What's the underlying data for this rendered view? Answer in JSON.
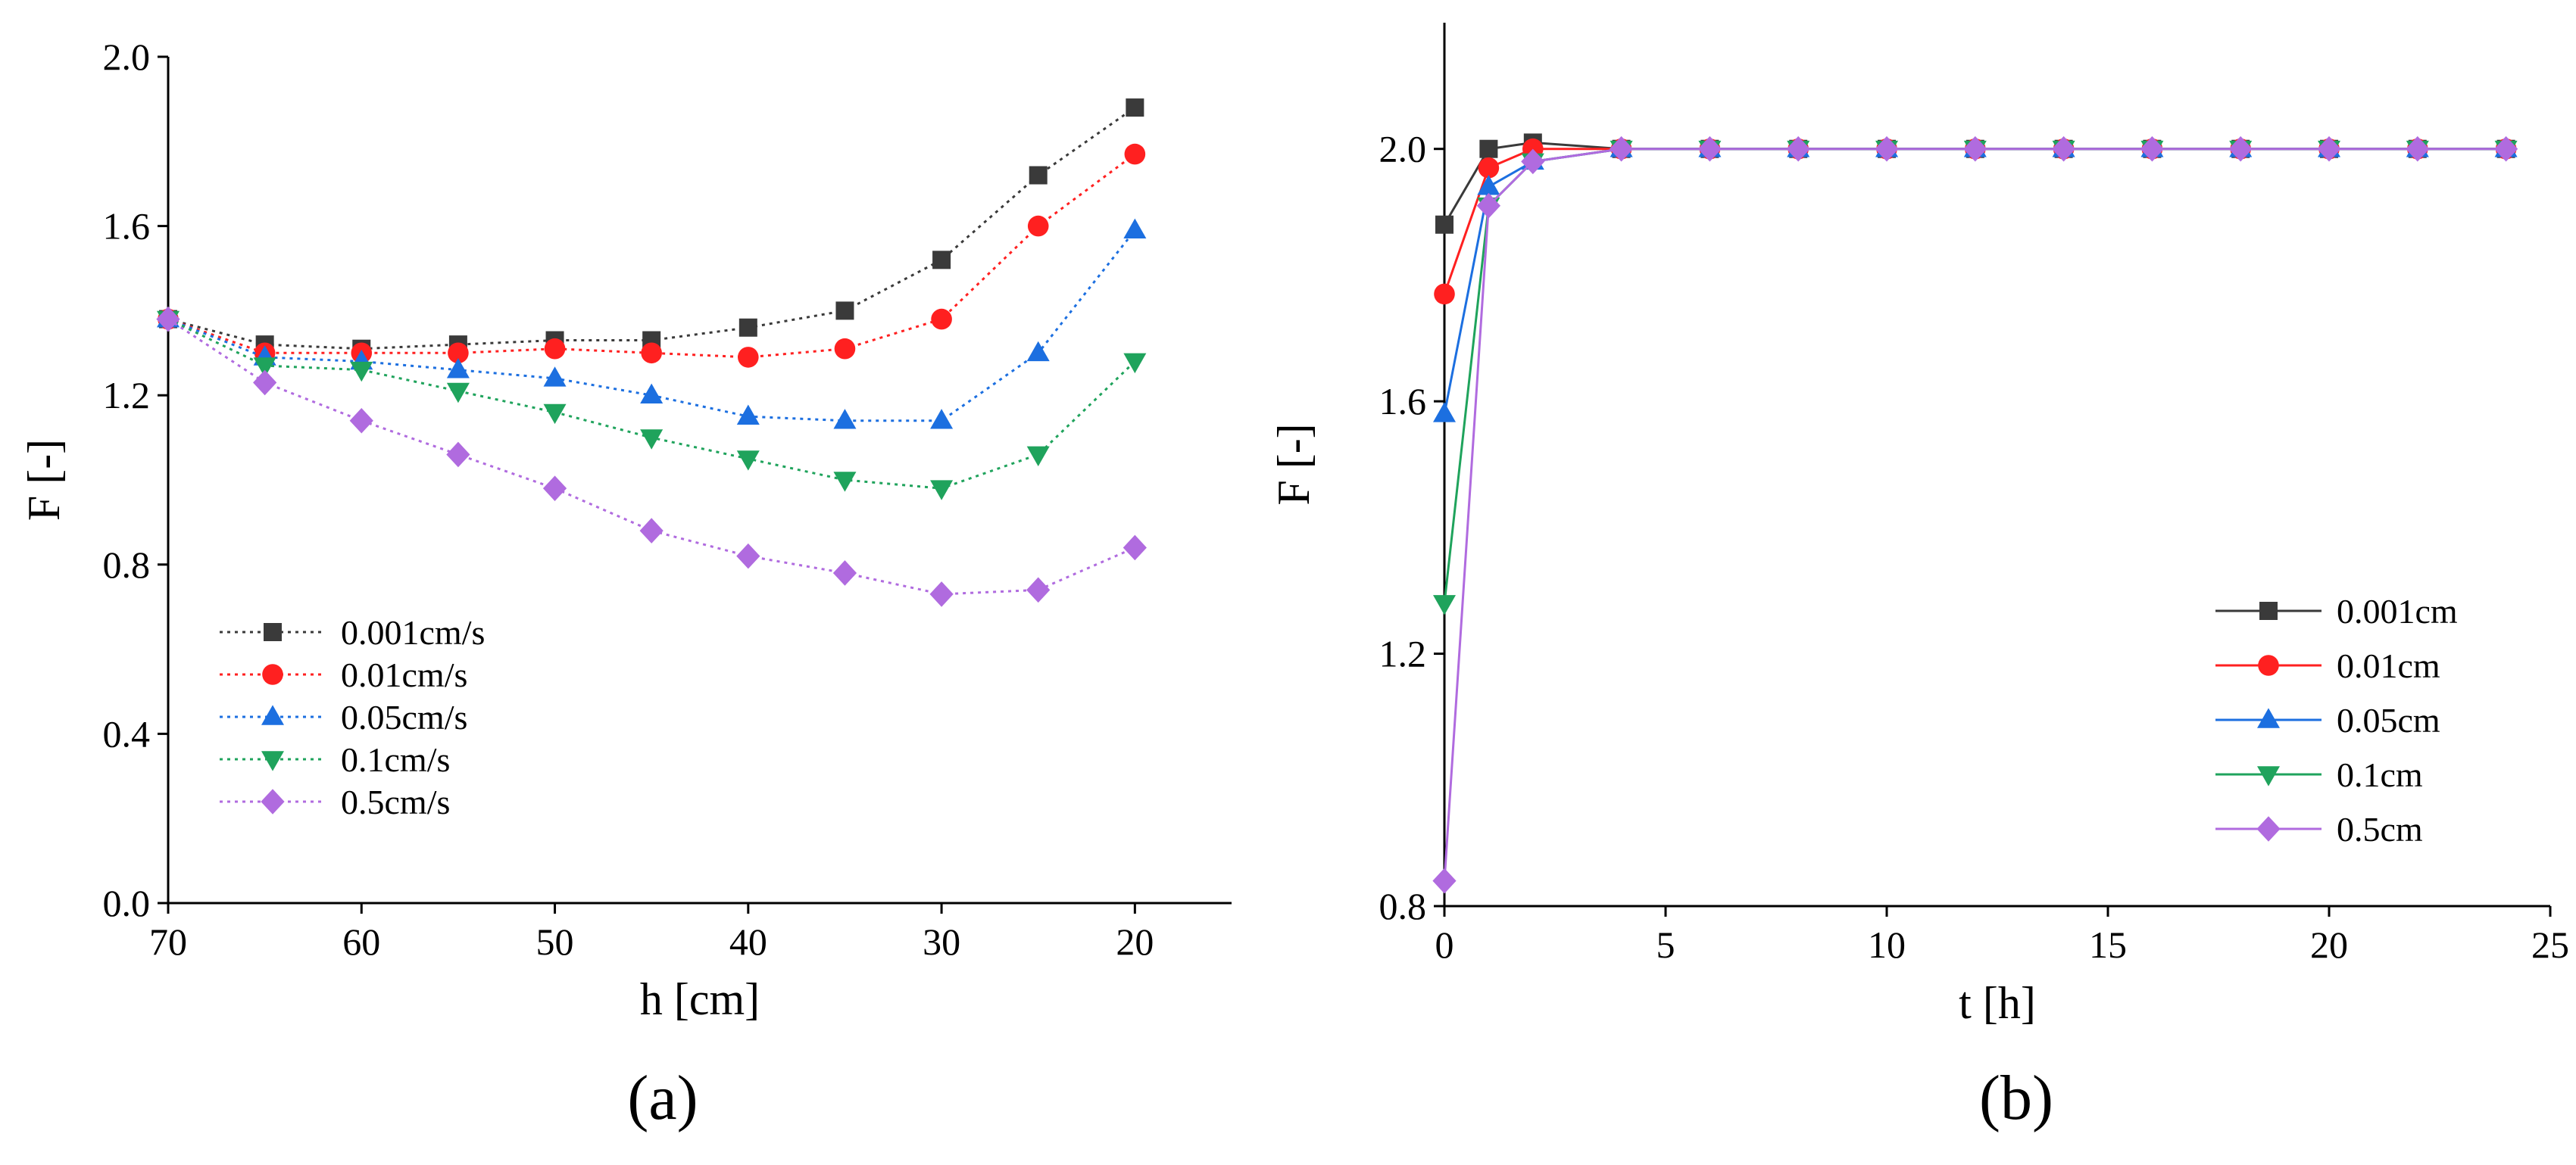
{
  "panels": [
    {
      "label": "(a)"
    },
    {
      "label": "(b)"
    }
  ],
  "chart_data": [
    {
      "type": "line",
      "panel": "(a)",
      "xlabel": "h [cm]",
      "ylabel": "F [-]",
      "xlim": [
        70,
        15
      ],
      "ylim": [
        0.0,
        2.0
      ],
      "xticks": [
        "70",
        "60",
        "50",
        "40",
        "30",
        "20"
      ],
      "yticks": [
        "0.0",
        "0.4",
        "0.8",
        "1.2",
        "1.6",
        "2.0"
      ],
      "x_reversed": true,
      "line_style": "dotted",
      "legend_position": "bottom-left",
      "x": [
        70,
        65,
        60,
        55,
        50,
        45,
        40,
        35,
        30,
        25,
        20
      ],
      "series": [
        {
          "name": "0.001cm/s",
          "color": "#3a3a3a",
          "marker": "square",
          "values": [
            1.38,
            1.32,
            1.31,
            1.32,
            1.33,
            1.33,
            1.36,
            1.4,
            1.52,
            1.72,
            1.88
          ]
        },
        {
          "name": "0.01cm/s",
          "color": "#ff2020",
          "marker": "circle",
          "values": [
            1.38,
            1.3,
            1.3,
            1.3,
            1.31,
            1.3,
            1.29,
            1.31,
            1.38,
            1.6,
            1.77
          ]
        },
        {
          "name": "0.05cm/s",
          "color": "#1c6fe0",
          "marker": "triangle-up",
          "values": [
            1.38,
            1.29,
            1.28,
            1.26,
            1.24,
            1.2,
            1.15,
            1.14,
            1.14,
            1.3,
            1.59
          ]
        },
        {
          "name": "0.1cm/s",
          "color": "#1fa35c",
          "marker": "triangle-down",
          "values": [
            1.38,
            1.27,
            1.26,
            1.21,
            1.16,
            1.1,
            1.05,
            1.0,
            0.98,
            1.06,
            1.28
          ]
        },
        {
          "name": "0.5cm/s",
          "color": "#b06bdf",
          "marker": "diamond",
          "values": [
            1.38,
            1.23,
            1.14,
            1.06,
            0.98,
            0.88,
            0.82,
            0.78,
            0.73,
            0.74,
            0.84
          ]
        }
      ]
    },
    {
      "type": "line",
      "panel": "(b)",
      "xlabel": "t [h]",
      "ylabel": "F [-]",
      "xlim": [
        0,
        25
      ],
      "ylim": [
        0.8,
        2.2
      ],
      "xticks": [
        "0",
        "5",
        "10",
        "15",
        "20",
        "25"
      ],
      "yticks": [
        "0.8",
        "1.2",
        "1.6",
        "2.0"
      ],
      "line_style": "solid",
      "legend_position": "bottom-right",
      "x": [
        0,
        1,
        2,
        4,
        6,
        8,
        10,
        12,
        14,
        16,
        18,
        20,
        22,
        24
      ],
      "series": [
        {
          "name": "0.001cm",
          "color": "#3a3a3a",
          "marker": "square",
          "values": [
            1.88,
            2.0,
            2.01,
            2.0,
            2.0,
            2.0,
            2.0,
            2.0,
            2.0,
            2.0,
            2.0,
            2.0,
            2.0,
            2.0
          ]
        },
        {
          "name": "0.01cm",
          "color": "#ff2020",
          "marker": "circle",
          "values": [
            1.77,
            1.97,
            2.0,
            2.0,
            2.0,
            2.0,
            2.0,
            2.0,
            2.0,
            2.0,
            2.0,
            2.0,
            2.0,
            2.0
          ]
        },
        {
          "name": "0.05cm",
          "color": "#1c6fe0",
          "marker": "triangle-up",
          "values": [
            1.58,
            1.94,
            1.98,
            2.0,
            2.0,
            2.0,
            2.0,
            2.0,
            2.0,
            2.0,
            2.0,
            2.0,
            2.0,
            2.0
          ]
        },
        {
          "name": "0.1cm",
          "color": "#1fa35c",
          "marker": "triangle-down",
          "values": [
            1.28,
            1.91,
            1.98,
            2.0,
            2.0,
            2.0,
            2.0,
            2.0,
            2.0,
            2.0,
            2.0,
            2.0,
            2.0,
            2.0
          ]
        },
        {
          "name": "0.5cm",
          "color": "#b06bdf",
          "marker": "diamond",
          "values": [
            0.84,
            1.91,
            1.98,
            2.0,
            2.0,
            2.0,
            2.0,
            2.0,
            2.0,
            2.0,
            2.0,
            2.0,
            2.0,
            2.0
          ]
        }
      ]
    }
  ]
}
